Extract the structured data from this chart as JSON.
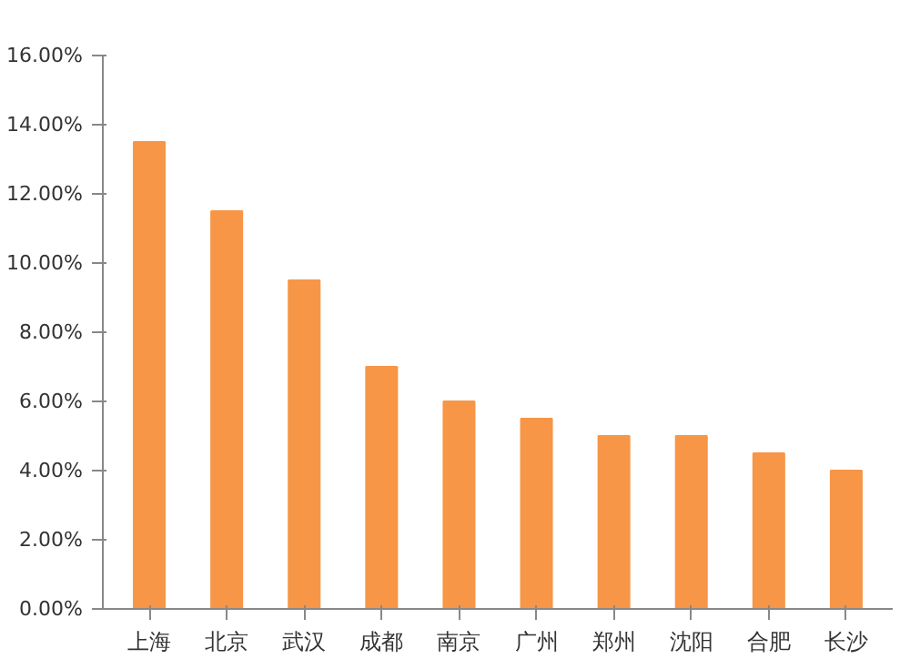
{
  "chart_data": {
    "type": "bar",
    "categories": [
      "上海",
      "北京",
      "武汉",
      "成都",
      "南京",
      "广州",
      "郑州",
      "沈阳",
      "合肥",
      "长沙"
    ],
    "values": [
      13.5,
      11.5,
      9.5,
      7.0,
      6.0,
      5.5,
      5.0,
      5.0,
      4.5,
      4.0
    ],
    "color": "#f79646",
    "ylim": [
      0,
      16
    ],
    "yticks": [
      {
        "value": 0,
        "label": "0.00%"
      },
      {
        "value": 2,
        "label": "2.00%"
      },
      {
        "value": 4,
        "label": "4.00%"
      },
      {
        "value": 6,
        "label": "6.00%"
      },
      {
        "value": 8,
        "label": "8.00%"
      },
      {
        "value": 10,
        "label": "10.00%"
      },
      {
        "value": 12,
        "label": "12.00%"
      },
      {
        "value": 14,
        "label": "14.00%"
      },
      {
        "value": 16,
        "label": "16.00%"
      }
    ],
    "grid": false
  }
}
